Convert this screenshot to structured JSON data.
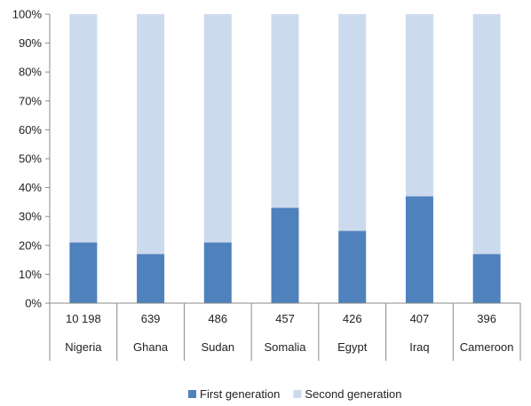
{
  "chart_data": {
    "type": "bar",
    "stacked": true,
    "percent_scale": true,
    "categories": [
      "Nigeria",
      "Ghana",
      "Sudan",
      "Somalia",
      "Egypt",
      "Iraq",
      "Cameroon"
    ],
    "category_counts": [
      "10 198",
      "639",
      "486",
      "457",
      "426",
      "407",
      "396"
    ],
    "series": [
      {
        "name": "First generation",
        "values": [
          21,
          17,
          21,
          33,
          25,
          37,
          17
        ],
        "color": "#4f81bd"
      },
      {
        "name": "Second generation",
        "values": [
          79,
          83,
          79,
          67,
          75,
          63,
          83
        ],
        "color": "#ccdaee"
      }
    ],
    "y_ticks": [
      "0%",
      "10%",
      "20%",
      "30%",
      "40%",
      "50%",
      "60%",
      "70%",
      "80%",
      "90%",
      "100%"
    ],
    "ylim": [
      0,
      100
    ],
    "grid": false,
    "legend_position": "bottom"
  }
}
